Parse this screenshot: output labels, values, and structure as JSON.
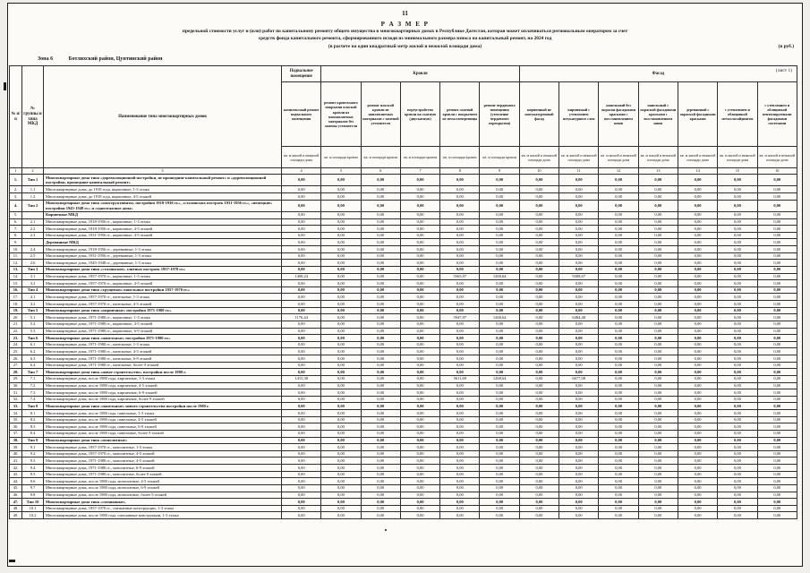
{
  "page": {
    "number": "11",
    "title": "Р А З М Е Р",
    "subtitle_line1": "предельной стоимости услуг и (или) работ по капитальному ремонту общего имущества в многоквартирных домах в Республике Дагестан, которая может оплачиваться региональным оператором  за счет",
    "subtitle_line2": "средств фонда капитального ремонта, сформированного исходя из минимального размера взноса на капитальный ремонт, на 2024 год",
    "subtitle_line3": "(в расчете на один квадратный метр жилой и нежилой площади дома)",
    "currency_note": "(в руб.)",
    "zone_label": "Зона 6",
    "zone_value": "Ботлихский район, Цунтинский район",
    "sheet_note": "(лист 1)"
  },
  "table": {
    "corner_headers": [
      "№ п/п",
      "№ группы и типа МКД",
      "Наименование типа многоквартирных домов"
    ],
    "groups": [
      {
        "label": "Подвальное помещение",
        "span": 1
      },
      {
        "label": "Кровля",
        "span": 5
      },
      {
        "label": "Фасад",
        "span": 7
      }
    ],
    "columns": [
      {
        "title": "комплексный ремонт подвального помещения",
        "unit": "кв. м жилой и нежилой площади дома",
        "num": "4"
      },
      {
        "title": "ремонт кровельного покрытия плоской кровли из наплавляемых материалов без замены утеплителя",
        "unit": "кв. м площади кровли",
        "num": "5"
      },
      {
        "title": "ремонт плоской кровли из наплавляемых материалов с заменой утеплителя",
        "unit": "кв. м площади кровли",
        "num": "6"
      },
      {
        "title": "переустройство кровли на скатную (двускатную)",
        "unit": "кв. м площади кровли",
        "num": "7"
      },
      {
        "title": "ремонт скатной кровли с покрытием из металлочерепицы",
        "unit": "кв. м площади кровли",
        "num": "8"
      },
      {
        "title": "ремонт чердачного помещения (утепление чердачного перекрытия)",
        "unit": "кв. м площади кровли",
        "num": "9"
      },
      {
        "title": "кирпичный не оштукатуренный фасад",
        "unit": "кв. м жилой и нежилой площади дома",
        "num": "10"
      },
      {
        "title": "кирпичный с утеплением штукатурного слоя",
        "unit": "кв. м жилой и нежилой площади дома",
        "num": "11"
      },
      {
        "title": "панельный без окраски фасадными красками с восстановлением швов",
        "unit": "кв. м жилой и нежилой площади дома",
        "num": "12"
      },
      {
        "title": "панельный с окраской фасадными красками с восстановлением швов",
        "unit": "кв. м жилой и нежилой площади дома",
        "num": "13"
      },
      {
        "title": "деревянный с окраской фасадными красками",
        "unit": "кв. м жилой и нежилой площади дома",
        "num": "14"
      },
      {
        "title": "с утеплением и облицовкой металлосайдингом",
        "unit": "кв. м жилой и нежилой площади дома",
        "num": "15"
      },
      {
        "title": "с утеплением и облицовкой вентилируемыми фасадными системами",
        "unit": "кв. м жилой и нежилой площади дома",
        "num": "16"
      }
    ],
    "number_row": [
      "1",
      "2",
      "3",
      "4",
      "5",
      "6",
      "7",
      "8",
      "9",
      "10",
      "11",
      "12",
      "13",
      "14",
      "15",
      "16"
    ],
    "default_value": "0,00",
    "rows": [
      {
        "n": "1.",
        "code": "Тип 1",
        "kind": "group",
        "name": "Многоквартирные дома типа «дореволюционной постройки, не прошедшие капитальный ремонт» и «дореволюционной постройки, прошедшие капитальный ремонт»"
      },
      {
        "n": "2.",
        "code": "1.1",
        "kind": "item",
        "name": "Многоквартирные дома, до 1918 года, кирпичные, 1-3 этажа"
      },
      {
        "n": "3.",
        "code": "1.2",
        "kind": "item",
        "name": "Многоквартирные дома, до 1918 года, кирпичные, 4-5 этажей"
      },
      {
        "n": "4.",
        "code": "Тип 2",
        "kind": "group",
        "name": "Многоквартирные дома типа «конструктивизм» постройки 1918-1930 гг.», «сталинских построек 1931-1956 гг.», «немецкие» постройки 1945-1948 гг.» и «одноэтажные дома»"
      },
      {
        "n": "5.",
        "code": "",
        "kind": "sub",
        "name": "Кирпичные МКД"
      },
      {
        "n": "6.",
        "code": "2.1",
        "kind": "item",
        "name": "Многоквартирные дома, 1918-1956 гг., кирпичные, 1-3 этажа"
      },
      {
        "n": "7.",
        "code": "2.2",
        "kind": "item",
        "name": "Многоквартирные дома, 1918-1956 гг., кирпичные, 4-5 этажей"
      },
      {
        "n": "8.",
        "code": "2.3",
        "kind": "item",
        "name": "Многоквартирные дома, 1931-1956 гг., кирпичные, 4-5 этажей"
      },
      {
        "n": "9.",
        "code": "",
        "kind": "sub",
        "name": "Деревянные МКД"
      },
      {
        "n": "10.",
        "code": "2.4",
        "kind": "item",
        "name": "Многоквартирные дома, 1918-1956 гг., деревянные, 1-3 этажа"
      },
      {
        "n": "11.",
        "code": "2.5",
        "kind": "item",
        "name": "Многоквартирные дома, 1931-1956 гг., деревянные, 1-3 этажа"
      },
      {
        "n": "12.",
        "code": "2.6",
        "kind": "item",
        "name": "Многоквартирные дома, 1945-1948 гг., деревянные, 1-3 этажа"
      },
      {
        "n": "13.",
        "code": "Тип 3",
        "kind": "group",
        "name": "Многоквартирные дома типа «сталинских» элитных построек 1957-1970 гг.»"
      },
      {
        "n": "14.",
        "code": "3.1",
        "kind": "item",
        "name": "Многоквартирные дома, 1957-1970 гг., кирпичные, 1-3 этажа",
        "values": [
          "1408,24",
          "0,00",
          "0,00",
          "0,00",
          "5565,97",
          "1268,64",
          "0,00",
          "9308,67",
          "0,00",
          "0,00",
          "0,00",
          "0,00",
          "0,00"
        ]
      },
      {
        "n": "15.",
        "code": "3.2",
        "kind": "item",
        "name": "Многоквартирные дома, 1957-1970 гг., кирпичные, 4-5 этажей"
      },
      {
        "n": "16.",
        "code": "Тип 4",
        "kind": "group",
        "name": "Многоквартирные дома типа «хрущевки» панельные постройки 1957-1970 гг.»"
      },
      {
        "n": "17.",
        "code": "4.1",
        "kind": "item",
        "name": "Многоквартирные дома, 1957-1970 гг., панельные, 1-3 этажа"
      },
      {
        "n": "18.",
        "code": "4.2",
        "kind": "item",
        "name": "Многоквартирные дома, 1957-1970 гг., панельные, 4-5 этажей"
      },
      {
        "n": "19.",
        "code": "Тип 5",
        "kind": "group",
        "name": "Многоквартирные дома типа «кирпичные» постройки 1971-1980 гг.»"
      },
      {
        "n": "20.",
        "code": "5.1",
        "kind": "item",
        "name": "Многоквартирные дома, 1971-1980 гг., кирпичные, 1-3 этажа",
        "values": [
          "1176,44",
          "0,00",
          "0,00",
          "0,00",
          "5947,97",
          "1268,64",
          "0,00",
          "6484,48",
          "0,00",
          "0,00",
          "0,00",
          "0,00",
          "0,00"
        ]
      },
      {
        "n": "21.",
        "code": "5.2",
        "kind": "item",
        "name": "Многоквартирные дома, 1971-1980 гг., кирпичные, 4-5 этажей"
      },
      {
        "n": "22.",
        "code": "5.3",
        "kind": "item",
        "name": "Многоквартирные дома, 1971-1980 гг., кирпичные, 6-9 этажей"
      },
      {
        "n": "23.",
        "code": "Тип 6",
        "kind": "group",
        "name": "Многоквартирные дома типа «панельные» постройки 1971-1980 гг.»"
      },
      {
        "n": "24.",
        "code": "6.1",
        "kind": "item",
        "name": "Многоквартирные дома, 1971-1980 гг., панельные, 1-3 этажа"
      },
      {
        "n": "25.",
        "code": "6.2",
        "kind": "item",
        "name": "Многоквартирные дома, 1971-1980 гг., панельные, 4-5 этажей"
      },
      {
        "n": "26.",
        "code": "6.3",
        "kind": "item",
        "name": "Многоквартирные дома, 1971-1980 гг., панельные, 6-9 этажей"
      },
      {
        "n": "27.",
        "code": "6.4",
        "kind": "item",
        "name": "Многоквартирные дома, 1971-1980 гг., панельные, более 9 этажей"
      },
      {
        "n": "28.",
        "code": "Тип 7",
        "kind": "group",
        "name": "Многоквартирные дома типа «новое строительство» постройки после 1980 г."
      },
      {
        "n": "29.",
        "code": "7.1",
        "kind": "item",
        "name": "Многоквартирные дома, после 1980 года, кирпичные, 1-3 этажа",
        "values": [
          "1415,38",
          "0,00",
          "0,00",
          "0,00",
          "5611,69",
          "1268,64",
          "0,00",
          "6677,08",
          "0,00",
          "0,00",
          "0,00",
          "0,00",
          "0,00"
        ]
      },
      {
        "n": "30.",
        "code": "7.2",
        "kind": "item",
        "name": "Многоквартирные дома, после 1980 года, кирпичные, 4-5 этажей"
      },
      {
        "n": "31.",
        "code": "7.3",
        "kind": "item",
        "name": "Многоквартирные дома, после 1980 года, кирпичные, 6-9 этажей"
      },
      {
        "n": "32.",
        "code": "7.4",
        "kind": "item",
        "name": "Многоквартирные дома, после 1980 года, кирпичные, более 9 этажей"
      },
      {
        "n": "33.",
        "code": "Тип 8",
        "kind": "group",
        "name": "Многоквартирные дома типа «панельные» нового строительства постройки после 1980 г."
      },
      {
        "n": "34.",
        "code": "8.1",
        "kind": "item",
        "name": "Многоквартирные дома, после 1980 года, панельные, 1-3 этажа"
      },
      {
        "n": "35.",
        "code": "8.2",
        "kind": "item",
        "name": "Многоквартирные дома, после 1980 года, панельные, 4-5 этажей"
      },
      {
        "n": "36.",
        "code": "8.3",
        "kind": "item",
        "name": "Многоквартирные дома, после 1980 года, панельные, 6-9 этажей"
      },
      {
        "n": "37.",
        "code": "8.4",
        "kind": "item",
        "name": "Многоквартирные дома, после 1980 года, панельные, более 9 этажей"
      },
      {
        "n": "38.",
        "code": "Тип 9",
        "kind": "group",
        "name": "Многоквартирные дома типа «монолитные»"
      },
      {
        "n": "39.",
        "code": "9.1",
        "kind": "item",
        "name": "Многоквартирные дома, 1957-1970 гг., монолитные, 1-3 этажа"
      },
      {
        "n": "40.",
        "code": "9.2",
        "kind": "item",
        "name": "Многоквартирные дома, 1957-1970 гг., монолитные, 4-5 этажей"
      },
      {
        "n": "41.",
        "code": "9.3",
        "kind": "item",
        "name": "Многоквартирные дома, 1971-1980 гг., монолитные, 4-5 этажей"
      },
      {
        "n": "42.",
        "code": "9.4",
        "kind": "item",
        "name": "Многоквартирные дома, 1971-1980 гг., монолитные, 6-9 этажей"
      },
      {
        "n": "43.",
        "code": "9.5",
        "kind": "item",
        "name": "Многоквартирные дома, 1971-1980 гг., монолитные, более 9 этажей"
      },
      {
        "n": "44.",
        "code": "9.6",
        "kind": "item",
        "name": "Многоквартирные дома, после 1980 года, монолитные, 4-5 этажей"
      },
      {
        "n": "45.",
        "code": "9.7",
        "kind": "item",
        "name": "Многоквартирные дома, после 1980 года, монолитные, 6-9 этажей"
      },
      {
        "n": "46.",
        "code": "9.8",
        "kind": "item",
        "name": "Многоквартирные дома, после 1980 года, монолитные, более 9 этажей"
      },
      {
        "n": "47.",
        "code": "Тип 10",
        "kind": "group",
        "name": "Многоквартирные дома типа «смешанные»"
      },
      {
        "n": "48.",
        "code": "10.1",
        "kind": "item",
        "name": "Многоквартирные дома, 1957-1970 гг., смешанные конструкции, 1-3 этажа"
      },
      {
        "n": "49.",
        "code": "10.2",
        "kind": "item",
        "name": "Многоквартирные дома, после 1980 года, смешанные конструкции, 1-3 этажа"
      }
    ]
  }
}
